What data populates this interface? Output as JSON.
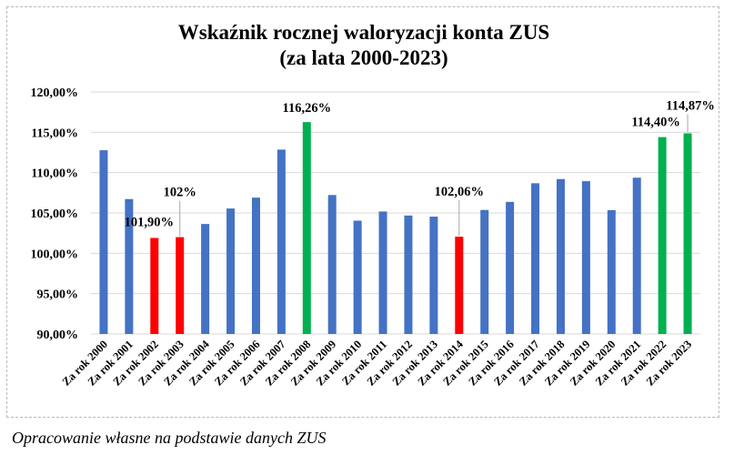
{
  "chart_data": {
    "type": "bar",
    "title_lines": [
      "Wskaźnik rocznej waloryzacji konta ZUS",
      "(za lata 2000-2023)"
    ],
    "categories": [
      "Za rok 2000",
      "Za rok 2001",
      "Za rok 2002",
      "Za rok 2003",
      "Za rok 2004",
      "Za rok 2005",
      "Za rok 2006",
      "Za rok 2007",
      "Za rok 2008",
      "Za rok 2009",
      "Za rok 2010",
      "Za rok 2011",
      "Za rok 2012",
      "Za rok 2013",
      "Za rok 2014",
      "Za rok 2015",
      "Za rok 2016",
      "Za rok 2017",
      "Za rok 2018",
      "Za rok 2019",
      "Za rok 2020",
      "Za rok 2021",
      "Za rok 2022",
      "Za rok 2023"
    ],
    "values": [
      112.77,
      106.72,
      101.9,
      102.0,
      103.63,
      105.55,
      106.9,
      112.85,
      116.26,
      107.22,
      104.04,
      105.18,
      104.68,
      104.54,
      102.06,
      105.37,
      106.37,
      108.68,
      109.2,
      108.94,
      105.35,
      109.37,
      114.4,
      114.87
    ],
    "bar_colors": [
      "#4472c4",
      "#4472c4",
      "#ff0000",
      "#ff0000",
      "#4472c4",
      "#4472c4",
      "#4472c4",
      "#4472c4",
      "#00b050",
      "#4472c4",
      "#4472c4",
      "#4472c4",
      "#4472c4",
      "#4472c4",
      "#ff0000",
      "#4472c4",
      "#4472c4",
      "#4472c4",
      "#4472c4",
      "#4472c4",
      "#4472c4",
      "#4472c4",
      "#00b050",
      "#00b050"
    ],
    "ylim": [
      90,
      120
    ],
    "yticks": [
      90,
      95,
      100,
      105,
      110,
      115,
      120
    ],
    "ytick_labels": [
      "90,00%",
      "95,00%",
      "100,00%",
      "105,00%",
      "110,00%",
      "115,00%",
      "120,00%"
    ],
    "grid": true,
    "legend": "none",
    "data_labels": [
      {
        "index": 2,
        "text": "101,90%"
      },
      {
        "index": 3,
        "text": "102%"
      },
      {
        "index": 8,
        "text": "116,26%"
      },
      {
        "index": 14,
        "text": "102,06%"
      },
      {
        "index": 22,
        "text": "114,40%"
      },
      {
        "index": 23,
        "text": "114,87%"
      }
    ],
    "colors": {
      "blue": "#4472c4",
      "red": "#ff0000",
      "green": "#00b050",
      "grid": "#d9d9d9"
    }
  },
  "source_note": "Opracowanie własne na podstawie danych ZUS"
}
